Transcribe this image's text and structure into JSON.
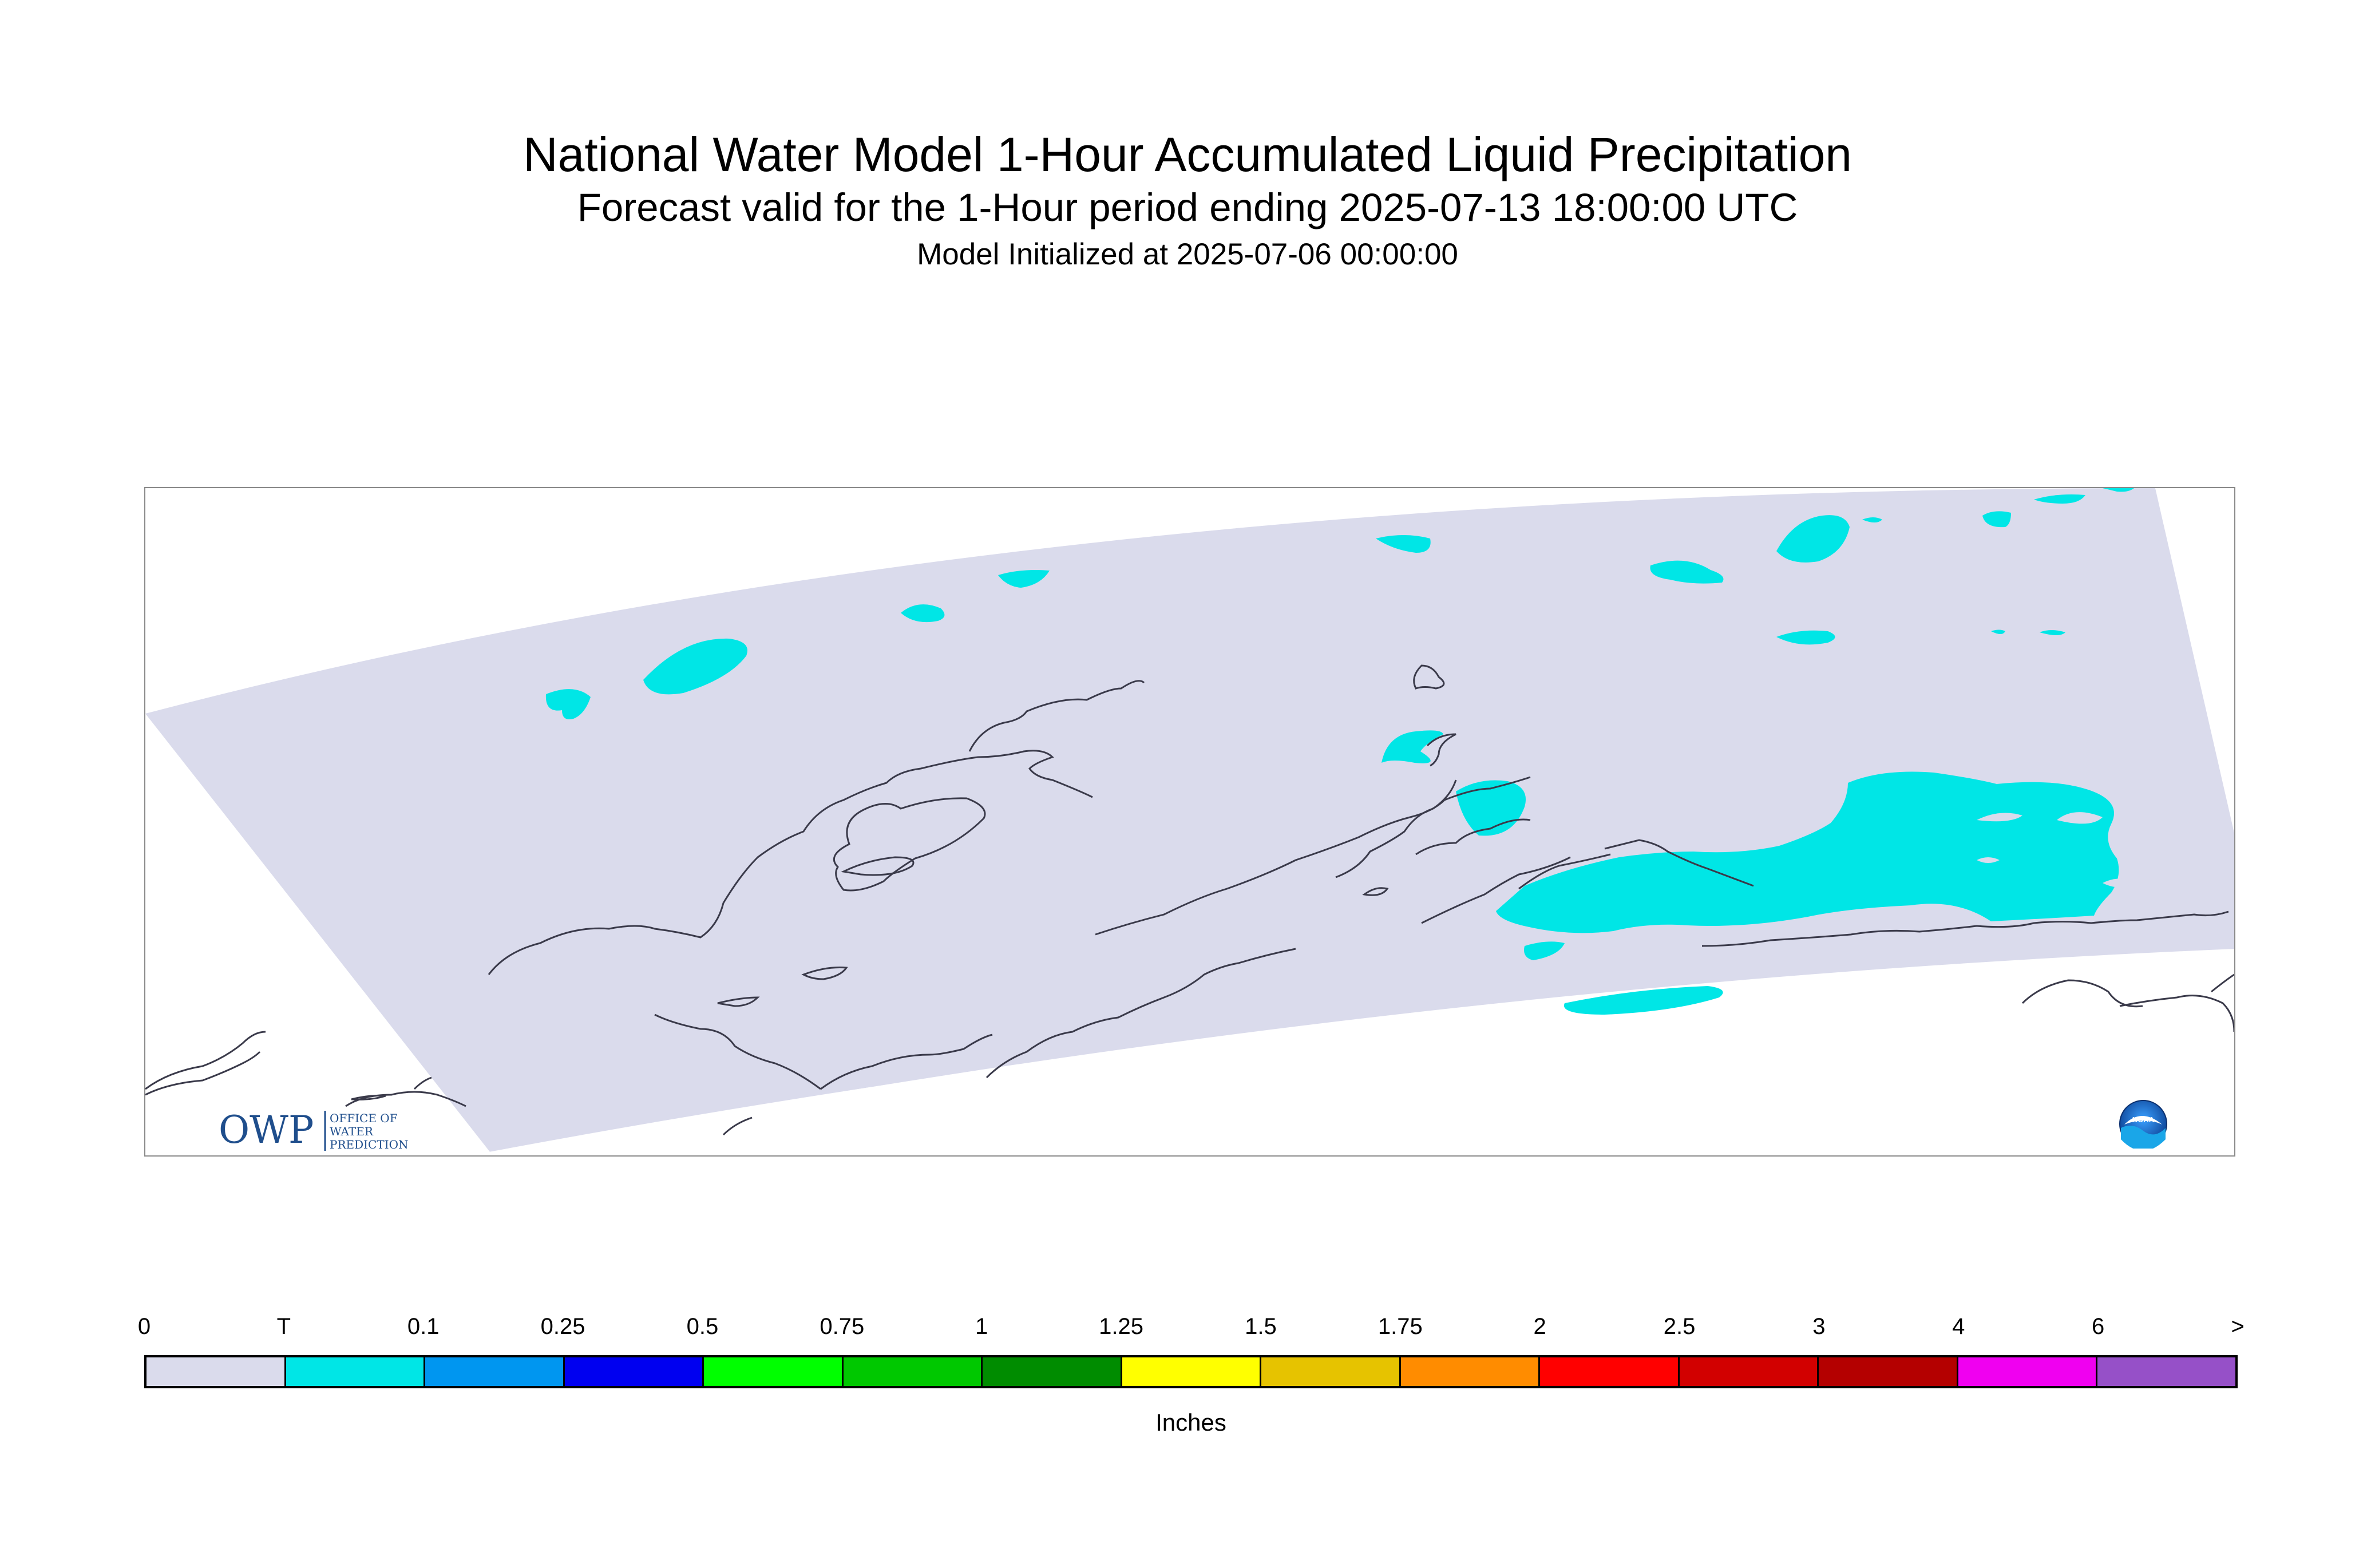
{
  "header": {
    "title": "National Water Model 1-Hour Accumulated Liquid Precipitation",
    "subtitle": "Forecast valid for the 1-Hour period ending 2025-07-13 18:00:00 UTC",
    "init_line": "Model Initialized at 2025-07-06 00:00:00"
  },
  "logos": {
    "owp_letters": "OWP",
    "owp_name_lines": [
      "OFFICE OF",
      "WATER",
      "PREDICTION"
    ],
    "noaa_text": "NOAA"
  },
  "map": {
    "domain_fill": "#dadbec",
    "precip_trace_color": "#00e6e6",
    "coastline_color": "#3a3a4a",
    "region": "Alaska"
  },
  "legend": {
    "units": "Inches",
    "ticks": [
      "0",
      "T",
      "0.1",
      "0.25",
      "0.5",
      "0.75",
      "1",
      "1.25",
      "1.5",
      "1.75",
      "2",
      "2.5",
      "3",
      "4",
      "6",
      ">"
    ],
    "colors": [
      "#dadbec",
      "#00e6e6",
      "#0096f0",
      "#0000f0",
      "#00ff00",
      "#00c800",
      "#008c00",
      "#ffff00",
      "#e6c300",
      "#ff8c00",
      "#ff0000",
      "#d20000",
      "#b40000",
      "#f000f0",
      "#9650c8"
    ]
  }
}
